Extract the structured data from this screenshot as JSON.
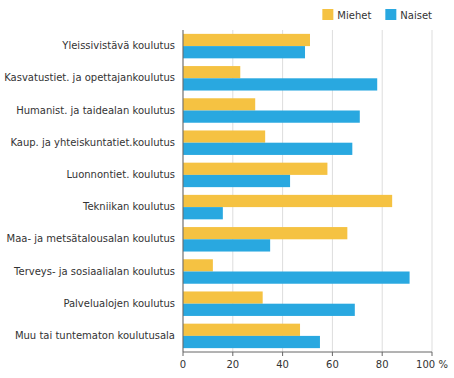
{
  "chart_data": {
    "type": "bar",
    "orientation": "horizontal",
    "categories": [
      "Yleissivistävä koulutus",
      "Kasvatustiet. ja opettajankoulutus",
      "Humanist. ja taidealan koulutus",
      "Kaup. ja yhteiskuntatiet.koulutus",
      "Luonnontiet. koulutus",
      "Tekniikan koulutus",
      "Maa- ja metsätalousalan koulutus",
      "Terveys- ja sosiaalialan koulutus",
      "Palvelualojen koulutus",
      "Muu tai tuntematon koulutusala"
    ],
    "series": [
      {
        "name": "Miehet",
        "color": "#F5C242",
        "values": [
          51,
          23,
          29,
          33,
          58,
          84,
          66,
          12,
          32,
          47
        ]
      },
      {
        "name": "Naiset",
        "color": "#29A8E0",
        "values": [
          49,
          78,
          71,
          68,
          43,
          16,
          35,
          91,
          69,
          55
        ]
      }
    ],
    "xlim": [
      0,
      100
    ],
    "xticks": [
      0,
      20,
      40,
      60,
      80,
      {
        "value": 100,
        "label": "100 %"
      }
    ],
    "grid": true,
    "legend": "upper right"
  }
}
